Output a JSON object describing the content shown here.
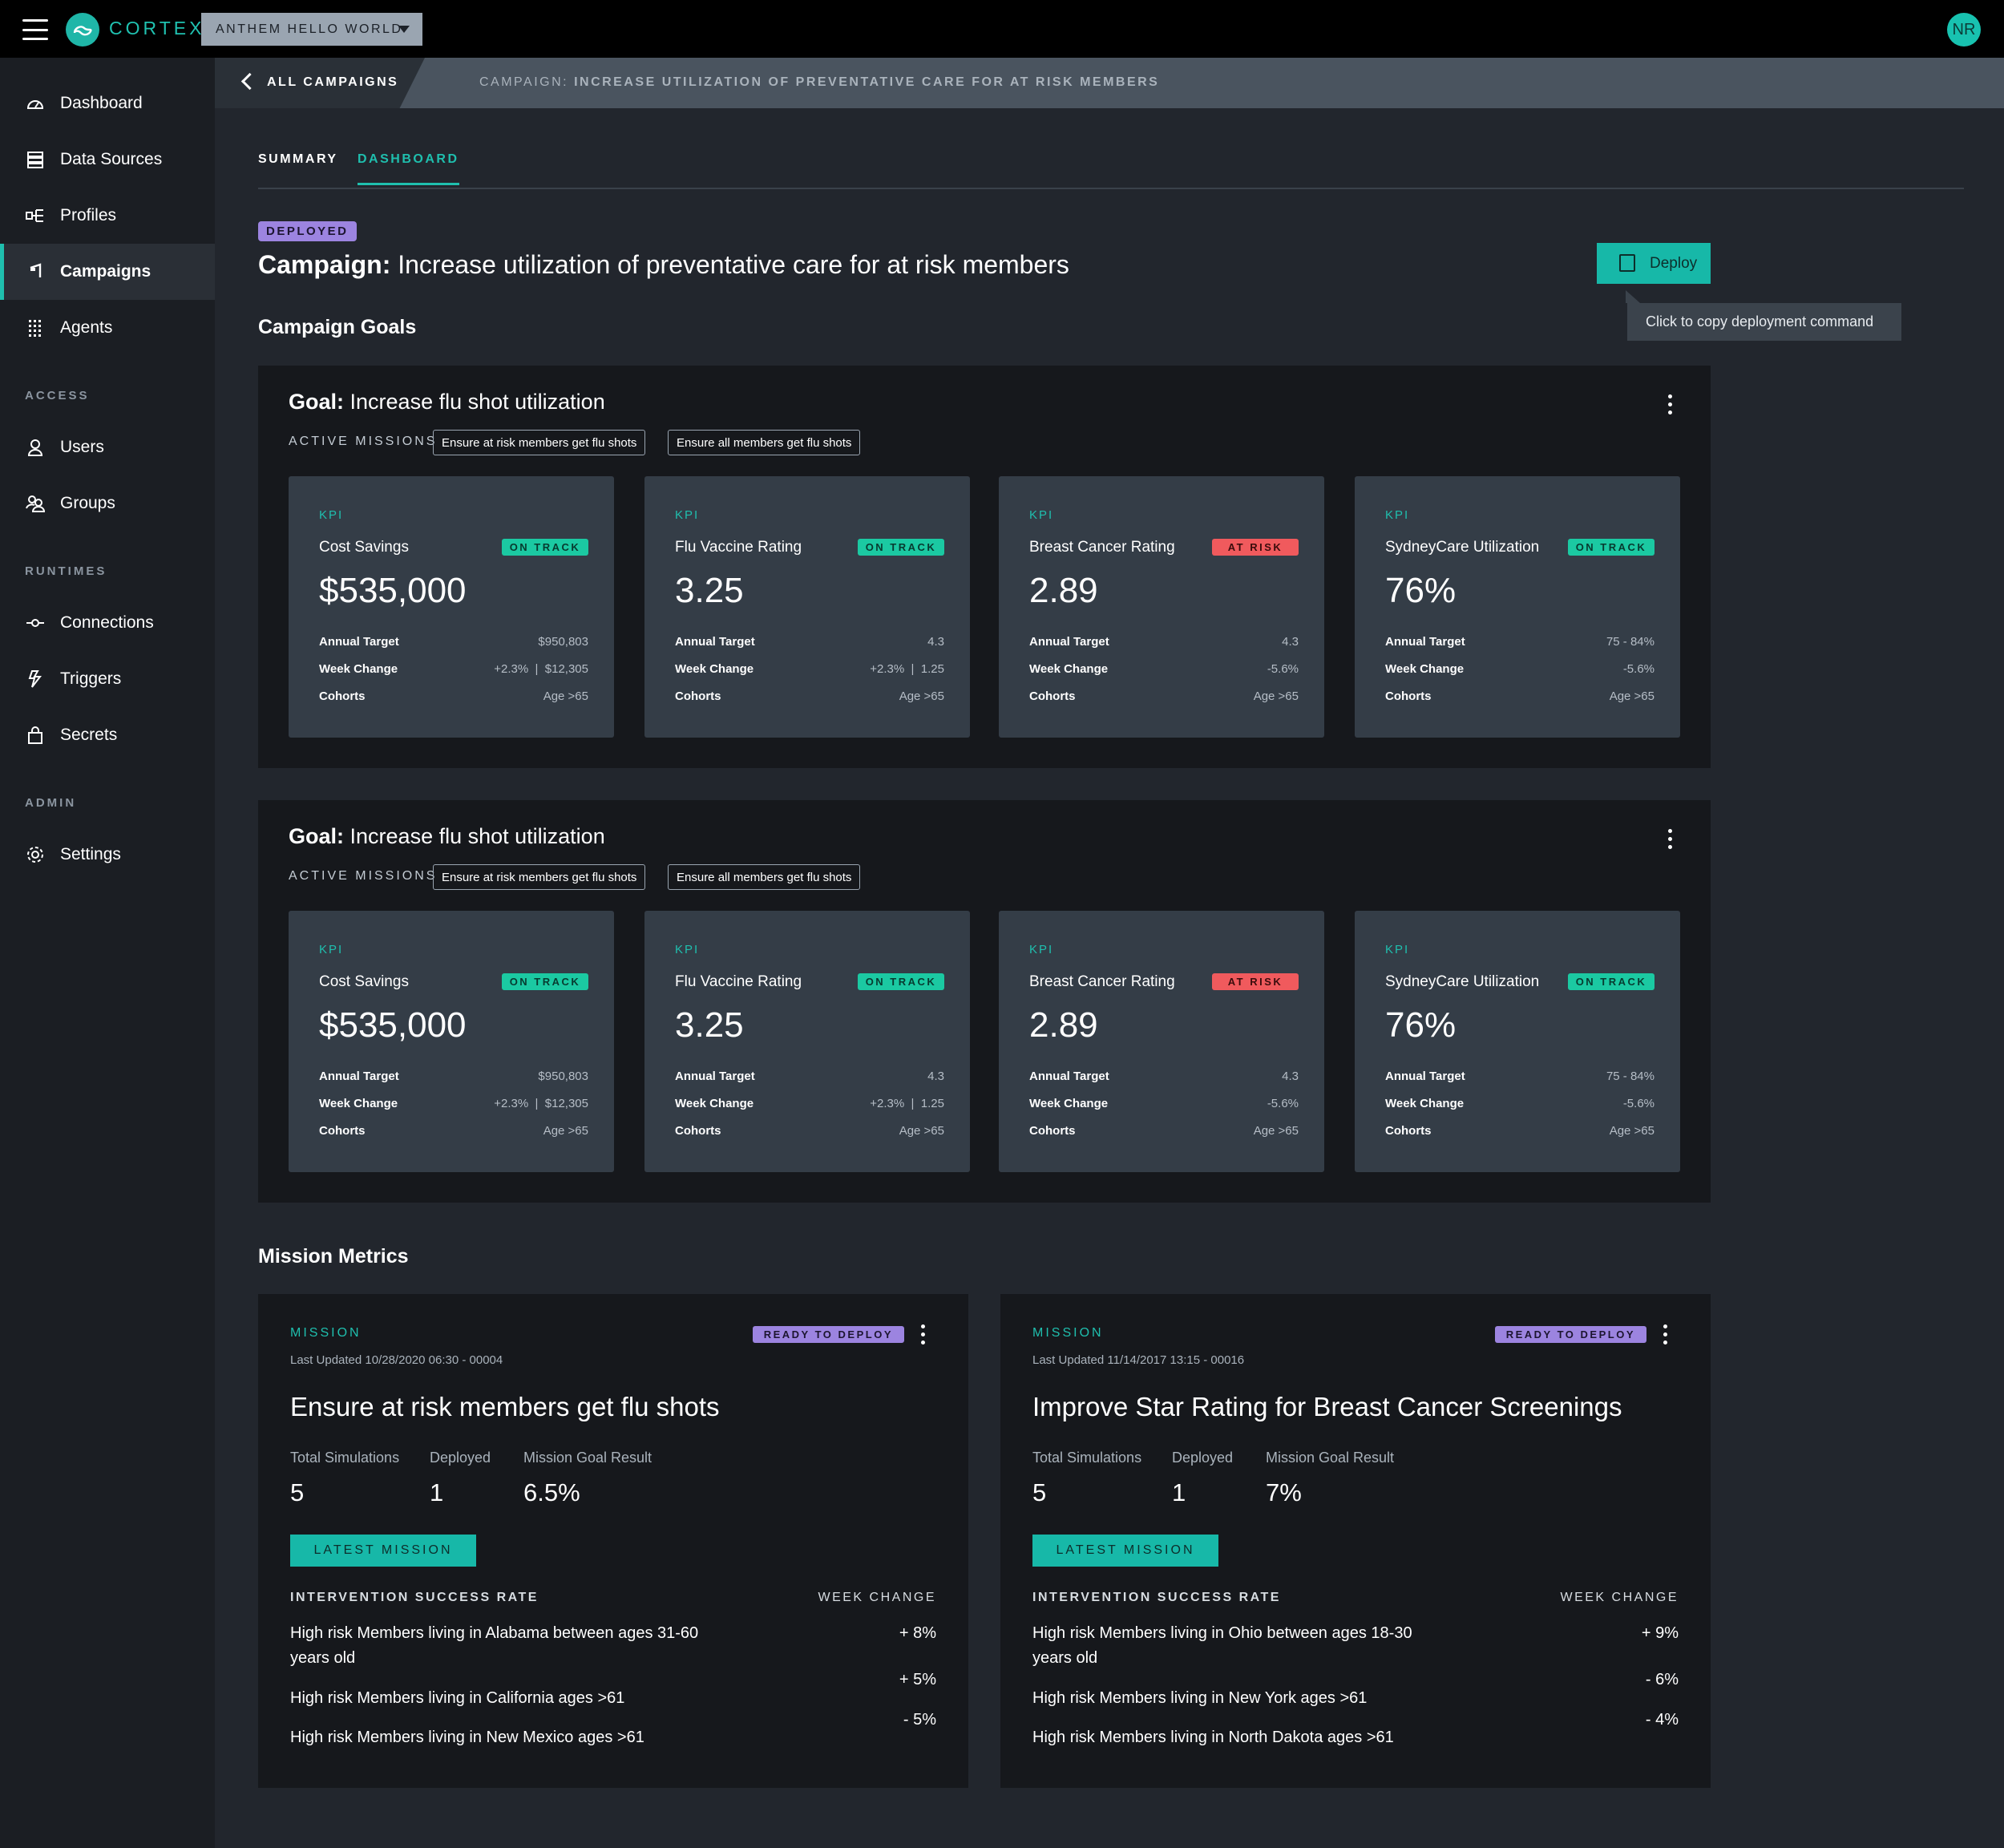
{
  "app": {
    "brand": "CORTEX",
    "tenant": "ANTHEM HELLO WORLD",
    "user_initials": "NR"
  },
  "sidebar": {
    "items": [
      {
        "label": "Dashboard"
      },
      {
        "label": "Data Sources"
      },
      {
        "label": "Profiles"
      },
      {
        "label": "Campaigns"
      },
      {
        "label": "Agents"
      }
    ],
    "sections": {
      "access": "ACCESS",
      "runtimes": "RUNTIMES",
      "admin": "ADMIN"
    },
    "access_items": [
      {
        "label": "Users"
      },
      {
        "label": "Groups"
      }
    ],
    "runtime_items": [
      {
        "label": "Connections"
      },
      {
        "label": "Triggers"
      },
      {
        "label": "Secrets"
      }
    ],
    "admin_items": [
      {
        "label": "Settings"
      }
    ]
  },
  "breadcrumb": {
    "back": "ALL CAMPAIGNS",
    "prefix": "CAMPAIGN:",
    "current": "INCREASE UTILIZATION OF PREVENTATIVE CARE FOR AT RISK MEMBERS"
  },
  "tabs": [
    {
      "label": "SUMMARY"
    },
    {
      "label": "DASHBOARD"
    }
  ],
  "campaign": {
    "status": "DEPLOYED",
    "title_prefix": "Campaign:",
    "title": "Increase utilization of preventative care for at risk members",
    "deploy_label": "Deploy",
    "deploy_tooltip": "Click to copy deployment command"
  },
  "sections": {
    "goals": "Campaign Goals",
    "missions": "Mission Metrics"
  },
  "goals": [
    {
      "prefix": "Goal:",
      "title": "Increase flu shot utilization",
      "missions_label": "ACTIVE MISSIONS",
      "chips": [
        "Ensure at risk members get flu shots",
        "Ensure all members get flu shots"
      ],
      "kpis": [
        {
          "kpi_label": "KPI",
          "name": "Cost Savings",
          "status": "ON TRACK",
          "value": "$535,000",
          "target_label": "Annual Target",
          "target": "$950,803",
          "change_label": "Week Change",
          "change_pct": "+2.3%",
          "change_abs": "$12,305",
          "cohort_label": "Cohorts",
          "cohort": "Age >65"
        },
        {
          "kpi_label": "KPI",
          "name": "Flu Vaccine Rating",
          "status": "ON TRACK",
          "value": "3.25",
          "target_label": "Annual Target",
          "target": "4.3",
          "change_label": "Week Change",
          "change_pct": "+2.3%",
          "change_abs": "1.25",
          "cohort_label": "Cohorts",
          "cohort": "Age >65"
        },
        {
          "kpi_label": "KPI",
          "name": "Breast Cancer Rating",
          "status": "AT RISK",
          "value": "2.89",
          "target_label": "Annual Target",
          "target": "4.3",
          "change_label": "Week Change",
          "change_pct": "-5.6%",
          "change_abs": "",
          "cohort_label": "Cohorts",
          "cohort": "Age >65"
        },
        {
          "kpi_label": "KPI",
          "name": "SydneyCare Utilization",
          "status": "ON TRACK",
          "value": "76%",
          "target_label": "Annual Target",
          "target": "75 - 84%",
          "change_label": "Week Change",
          "change_pct": "-5.6%",
          "change_abs": "",
          "cohort_label": "Cohorts",
          "cohort": "Age >65"
        }
      ]
    },
    {
      "prefix": "Goal:",
      "title": "Increase flu shot utilization",
      "missions_label": "ACTIVE MISSIONS",
      "chips": [
        "Ensure at risk members get flu shots",
        "Ensure all members get flu shots"
      ],
      "kpis": [
        {
          "kpi_label": "KPI",
          "name": "Cost Savings",
          "status": "ON TRACK",
          "value": "$535,000",
          "target_label": "Annual Target",
          "target": "$950,803",
          "change_label": "Week Change",
          "change_pct": "+2.3%",
          "change_abs": "$12,305",
          "cohort_label": "Cohorts",
          "cohort": "Age >65"
        },
        {
          "kpi_label": "KPI",
          "name": "Flu Vaccine Rating",
          "status": "ON TRACK",
          "value": "3.25",
          "target_label": "Annual Target",
          "target": "4.3",
          "change_label": "Week Change",
          "change_pct": "+2.3%",
          "change_abs": "1.25",
          "cohort_label": "Cohorts",
          "cohort": "Age >65"
        },
        {
          "kpi_label": "KPI",
          "name": "Breast Cancer Rating",
          "status": "AT RISK",
          "value": "2.89",
          "target_label": "Annual Target",
          "target": "4.3",
          "change_label": "Week Change",
          "change_pct": "-5.6%",
          "change_abs": "",
          "cohort_label": "Cohorts",
          "cohort": "Age >65"
        },
        {
          "kpi_label": "KPI",
          "name": "SydneyCare Utilization",
          "status": "ON TRACK",
          "value": "76%",
          "target_label": "Annual Target",
          "target": "75 - 84%",
          "change_label": "Week Change",
          "change_pct": "-5.6%",
          "change_abs": "",
          "cohort_label": "Cohorts",
          "cohort": "Age >65"
        }
      ]
    }
  ],
  "missions": [
    {
      "label": "MISSION",
      "updated": "Last Updated 10/28/2020 06:30 - 00004",
      "status": "READY TO DEPLOY",
      "title": "Ensure at risk members get flu shots",
      "stats": [
        {
          "label": "Total Simulations",
          "value": "5"
        },
        {
          "label": "Deployed",
          "value": "1"
        },
        {
          "label": "Mission Goal Result",
          "value": "6.5%"
        }
      ],
      "button": "LATEST MISSION",
      "isr_label": "INTERVENTION SUCCESS RATE",
      "wc_label": "WEEK CHANGE",
      "rows": [
        {
          "text": "High risk Members living in Alabama between ages 31-60 years old",
          "change": "+ 8%"
        },
        {
          "text": "High risk Members living in California ages >61",
          "change": "+ 5%"
        },
        {
          "text": "High risk Members living in New Mexico ages >61",
          "change": "- 5%"
        }
      ]
    },
    {
      "label": "MISSION",
      "updated": "Last Updated 11/14/2017 13:15 - 00016",
      "status": "READY TO DEPLOY",
      "title": "Improve Star Rating for Breast Cancer Screenings",
      "stats": [
        {
          "label": "Total Simulations",
          "value": "5"
        },
        {
          "label": "Deployed",
          "value": "1"
        },
        {
          "label": "Mission Goal Result",
          "value": "7%"
        }
      ],
      "button": "LATEST MISSION",
      "isr_label": "INTERVENTION SUCCESS RATE",
      "wc_label": "WEEK CHANGE",
      "rows": [
        {
          "text": "High risk Members living in Ohio between ages 18-30 years old",
          "change": "+ 9%"
        },
        {
          "text": "High risk Members living in New York ages >61",
          "change": "- 6%"
        },
        {
          "text": "High risk Members living in North Dakota ages >61",
          "change": "- 4%"
        }
      ]
    }
  ]
}
